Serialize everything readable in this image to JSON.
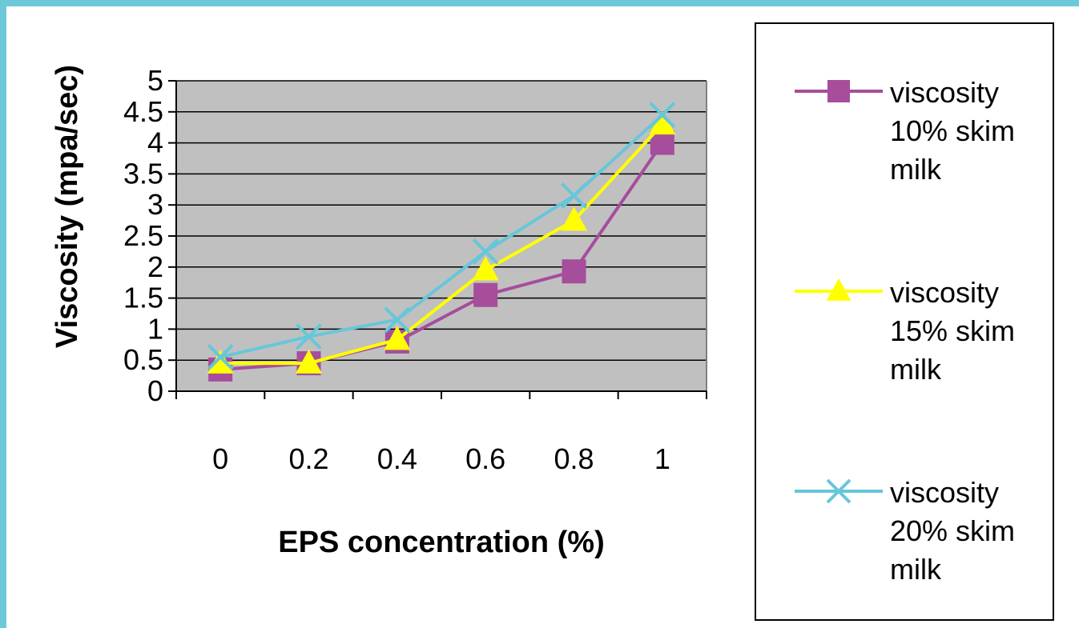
{
  "chart_data": {
    "type": "line",
    "title": "",
    "xlabel": "EPS concentration (%)",
    "ylabel": "Viscosity  (mpa/sec)",
    "categories": [
      "0",
      "0.2",
      "0.4",
      "0.6",
      "0.8",
      "1"
    ],
    "y_ticks": [
      "0",
      "0.5",
      "1",
      "1.5",
      "2",
      "2.5",
      "3",
      "3.5",
      "4",
      "4.5",
      "5"
    ],
    "ylim": [
      0,
      5
    ],
    "grid": true,
    "legend_position": "right",
    "plot_background": "#c0c0c0",
    "series": [
      {
        "name": "viscosity 10% skim milk",
        "color": "#a64d9c",
        "marker": "square",
        "values": [
          0.35,
          0.45,
          0.8,
          1.55,
          1.93,
          4.0
        ]
      },
      {
        "name": "viscosity 15% skim milk",
        "color": "#ffff00",
        "marker": "triangle",
        "values": [
          0.45,
          0.45,
          0.83,
          1.95,
          2.75,
          4.3
        ]
      },
      {
        "name": "viscosity 20% skim milk",
        "color": "#66c7d9",
        "marker": "x",
        "values": [
          0.55,
          0.88,
          1.15,
          2.25,
          3.15,
          4.45
        ]
      }
    ]
  }
}
